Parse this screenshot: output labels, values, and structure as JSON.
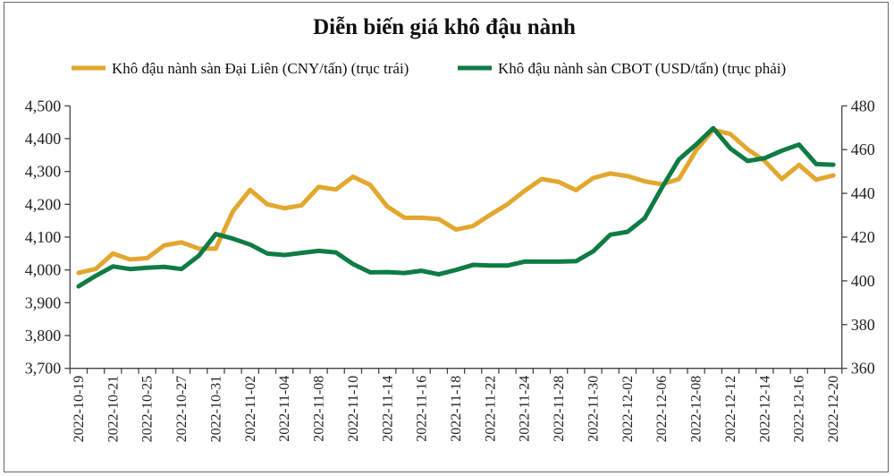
{
  "chart_data": {
    "type": "line",
    "title": "Diễn biến giá khô đậu nành",
    "x_tick_labels": [
      "2022-10-19",
      "2022-10-21",
      "2022-10-25",
      "2022-10-27",
      "2022-10-31",
      "2022-11-02",
      "2022-11-04",
      "2022-11-08",
      "2022-11-10",
      "2022-11-14",
      "2022-11-16",
      "2022-11-18",
      "2022-11-22",
      "2022-11-24",
      "2022-11-28",
      "2022-11-30",
      "2022-12-02",
      "2022-12-06",
      "2022-12-08",
      "2022-12-12",
      "2022-12-14",
      "2022-12-16",
      "2022-12-20"
    ],
    "left_axis": {
      "ylim": [
        3700,
        4500
      ],
      "ticks": [
        "3,700",
        "3,800",
        "3,900",
        "4,000",
        "4,100",
        "4,200",
        "4,300",
        "4,400",
        "4,500"
      ]
    },
    "right_axis": {
      "ylim": [
        360,
        480
      ],
      "ticks": [
        "360",
        "380",
        "400",
        "420",
        "440",
        "460",
        "480"
      ]
    },
    "grid": false,
    "legend_position": "top",
    "series": [
      {
        "name": "Khô đậu nành sàn Đại Liên  (CNY/tấn) (trục trái)",
        "axis": "left",
        "color": "#E2A72E",
        "values": [
          3991,
          4003,
          4050,
          4032,
          4036,
          4075,
          4084,
          4065,
          4065,
          4179,
          4244,
          4200,
          4188,
          4197,
          4253,
          4245,
          4284,
          4259,
          4193,
          4159,
          4159,
          4155,
          4123,
          4134,
          4168,
          4200,
          4241,
          4277,
          4268,
          4243,
          4280,
          4294,
          4286,
          4270,
          4261,
          4277,
          4364,
          4427,
          4414,
          4368,
          4332,
          4277,
          4320,
          4275,
          4288
        ]
      },
      {
        "name": "Khô đậu nành sàn CBOT (USD/tấn) (trục phải)",
        "axis": "right",
        "color": "#0F7B45",
        "values": [
          397.5,
          402.3,
          406.6,
          405.4,
          406.0,
          406.4,
          405.4,
          411.4,
          421.4,
          419.3,
          416.6,
          412.5,
          411.8,
          412.8,
          413.7,
          413.0,
          407.7,
          403.9,
          404.0,
          403.6,
          404.6,
          403.0,
          405.0,
          407.3,
          407.0,
          407.0,
          408.8,
          408.8,
          408.8,
          409.0,
          413.5,
          421.1,
          422.4,
          428.6,
          442.5,
          455.5,
          462.3,
          469.8,
          460.5,
          454.8,
          456.1,
          459.5,
          462.3,
          453.4,
          453.1
        ]
      }
    ]
  }
}
